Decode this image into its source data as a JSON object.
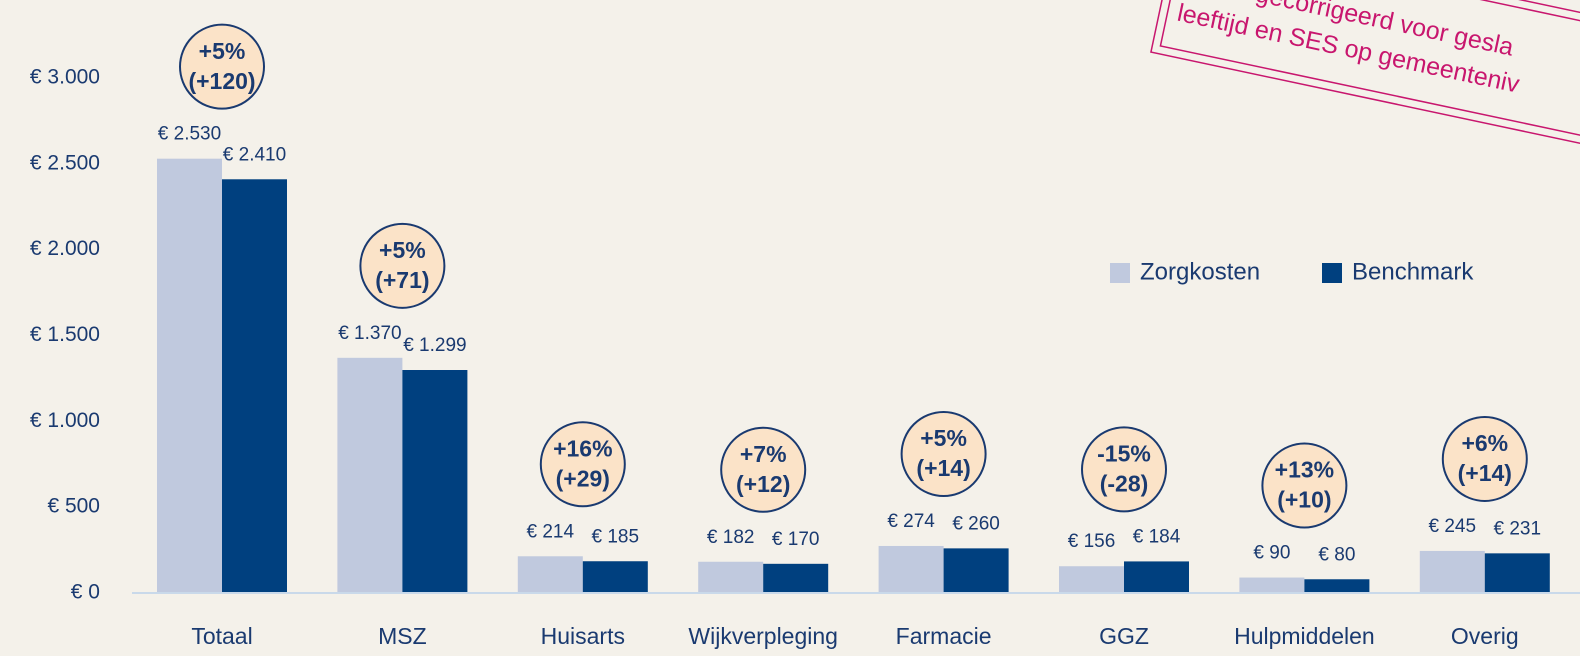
{
  "chart_data": {
    "type": "bar",
    "categories": [
      "Totaal",
      "MSZ",
      "Huisarts",
      "Wijkverpleging",
      "Farmacie",
      "GGZ",
      "Hulpmiddelen",
      "Overig"
    ],
    "series": [
      {
        "name": "Zorgkosten",
        "color": "#c0c9de",
        "values": [
          2530,
          1370,
          214,
          182,
          274,
          156,
          90,
          245
        ],
        "value_labels": [
          "€ 2.530",
          "€ 1.370",
          "€ 214",
          "€ 182",
          "€ 274",
          "€ 156",
          "€ 90",
          "€ 245"
        ]
      },
      {
        "name": "Benchmark",
        "color": "#00407f",
        "values": [
          2410,
          1299,
          185,
          170,
          260,
          184,
          80,
          231
        ],
        "value_labels": [
          "€ 2.410",
          "€ 1.299",
          "€ 185",
          "€ 170",
          "€ 260",
          "€ 184",
          "€ 80",
          "€ 231"
        ]
      }
    ],
    "annotations": [
      [
        "+5%",
        "(+120)"
      ],
      [
        "+5%",
        "(+71)"
      ],
      [
        "+16%",
        "(+29)"
      ],
      [
        "+7%",
        "(+12)"
      ],
      [
        "+5%",
        "(+14)"
      ],
      [
        "-15%",
        "(-28)"
      ],
      [
        "+13%",
        "(+10)"
      ],
      [
        "+6%",
        "(+14)"
      ]
    ],
    "stamp": [
      "icen  gecorrigeerd voor gesla",
      "leeftijd en SES op gemeenteniv"
    ],
    "ylim": [
      0,
      3000
    ],
    "yticks": [
      {
        "value": 0,
        "label": "€ 0"
      },
      {
        "value": 500,
        "label": "€ 500"
      },
      {
        "value": 1000,
        "label": "€ 1.000"
      },
      {
        "value": 1500,
        "label": "€ 1.500"
      },
      {
        "value": 2000,
        "label": "€ 2.000"
      },
      {
        "value": 2500,
        "label": "€ 2.500"
      },
      {
        "value": 3000,
        "label": "€ 3.000"
      }
    ],
    "grid": false
  }
}
